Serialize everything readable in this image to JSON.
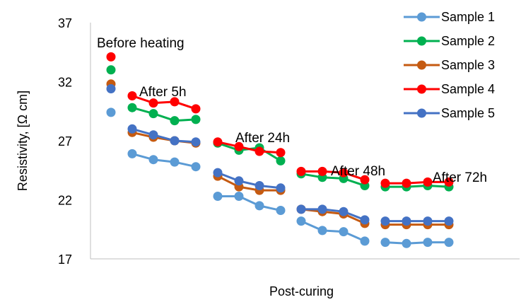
{
  "chart_data": {
    "type": "line",
    "xlabel": "Post-curing",
    "ylabel": "Resistivity, [Ω cm]",
    "ylim": [
      17,
      37
    ],
    "yticks": [
      17,
      22,
      27,
      32,
      37
    ],
    "grid": false,
    "legend_position": "top-right",
    "groups": [
      {
        "label": "Before heating",
        "x": [
          1
        ]
      },
      {
        "label": "After 5h",
        "x": [
          2,
          3,
          4,
          5
        ]
      },
      {
        "label": "After 24h",
        "x": [
          6,
          7,
          8,
          9
        ]
      },
      {
        "label": "After 48h",
        "x": [
          10,
          11,
          12,
          13
        ]
      },
      {
        "label": "After 72h",
        "x": [
          14,
          15,
          16,
          17
        ]
      }
    ],
    "series": [
      {
        "name": "Sample 1",
        "color": "#5B9BD5",
        "values": [
          29.4,
          25.9,
          25.4,
          25.2,
          24.8,
          22.3,
          22.3,
          21.5,
          21.1,
          20.2,
          19.4,
          19.3,
          18.5,
          18.4,
          18.3,
          18.4,
          18.4
        ]
      },
      {
        "name": "Sample 2",
        "color": "#00B050",
        "values": [
          33.0,
          29.8,
          29.3,
          28.7,
          28.8,
          26.8,
          26.2,
          26.4,
          25.3,
          24.2,
          23.9,
          23.8,
          23.2,
          23.1,
          23.1,
          23.2,
          23.1
        ]
      },
      {
        "name": "Sample 3",
        "color": "#C55A11",
        "values": [
          31.8,
          27.7,
          27.3,
          27.0,
          26.8,
          24.0,
          23.1,
          22.8,
          22.8,
          21.2,
          21.0,
          20.8,
          20.0,
          19.9,
          19.9,
          19.9,
          19.9
        ]
      },
      {
        "name": "Sample 4",
        "color": "#FF0000",
        "values": [
          34.1,
          30.8,
          30.2,
          30.3,
          29.7,
          26.9,
          26.5,
          26.1,
          26.0,
          24.4,
          24.4,
          24.3,
          23.7,
          23.4,
          23.4,
          23.5,
          23.5
        ]
      },
      {
        "name": "Sample 5",
        "color": "#4472C4",
        "values": [
          31.4,
          28.0,
          27.5,
          27.0,
          26.9,
          24.3,
          23.6,
          23.2,
          23.0,
          21.2,
          21.2,
          21.0,
          20.3,
          20.2,
          20.2,
          20.2,
          20.2
        ]
      }
    ]
  }
}
